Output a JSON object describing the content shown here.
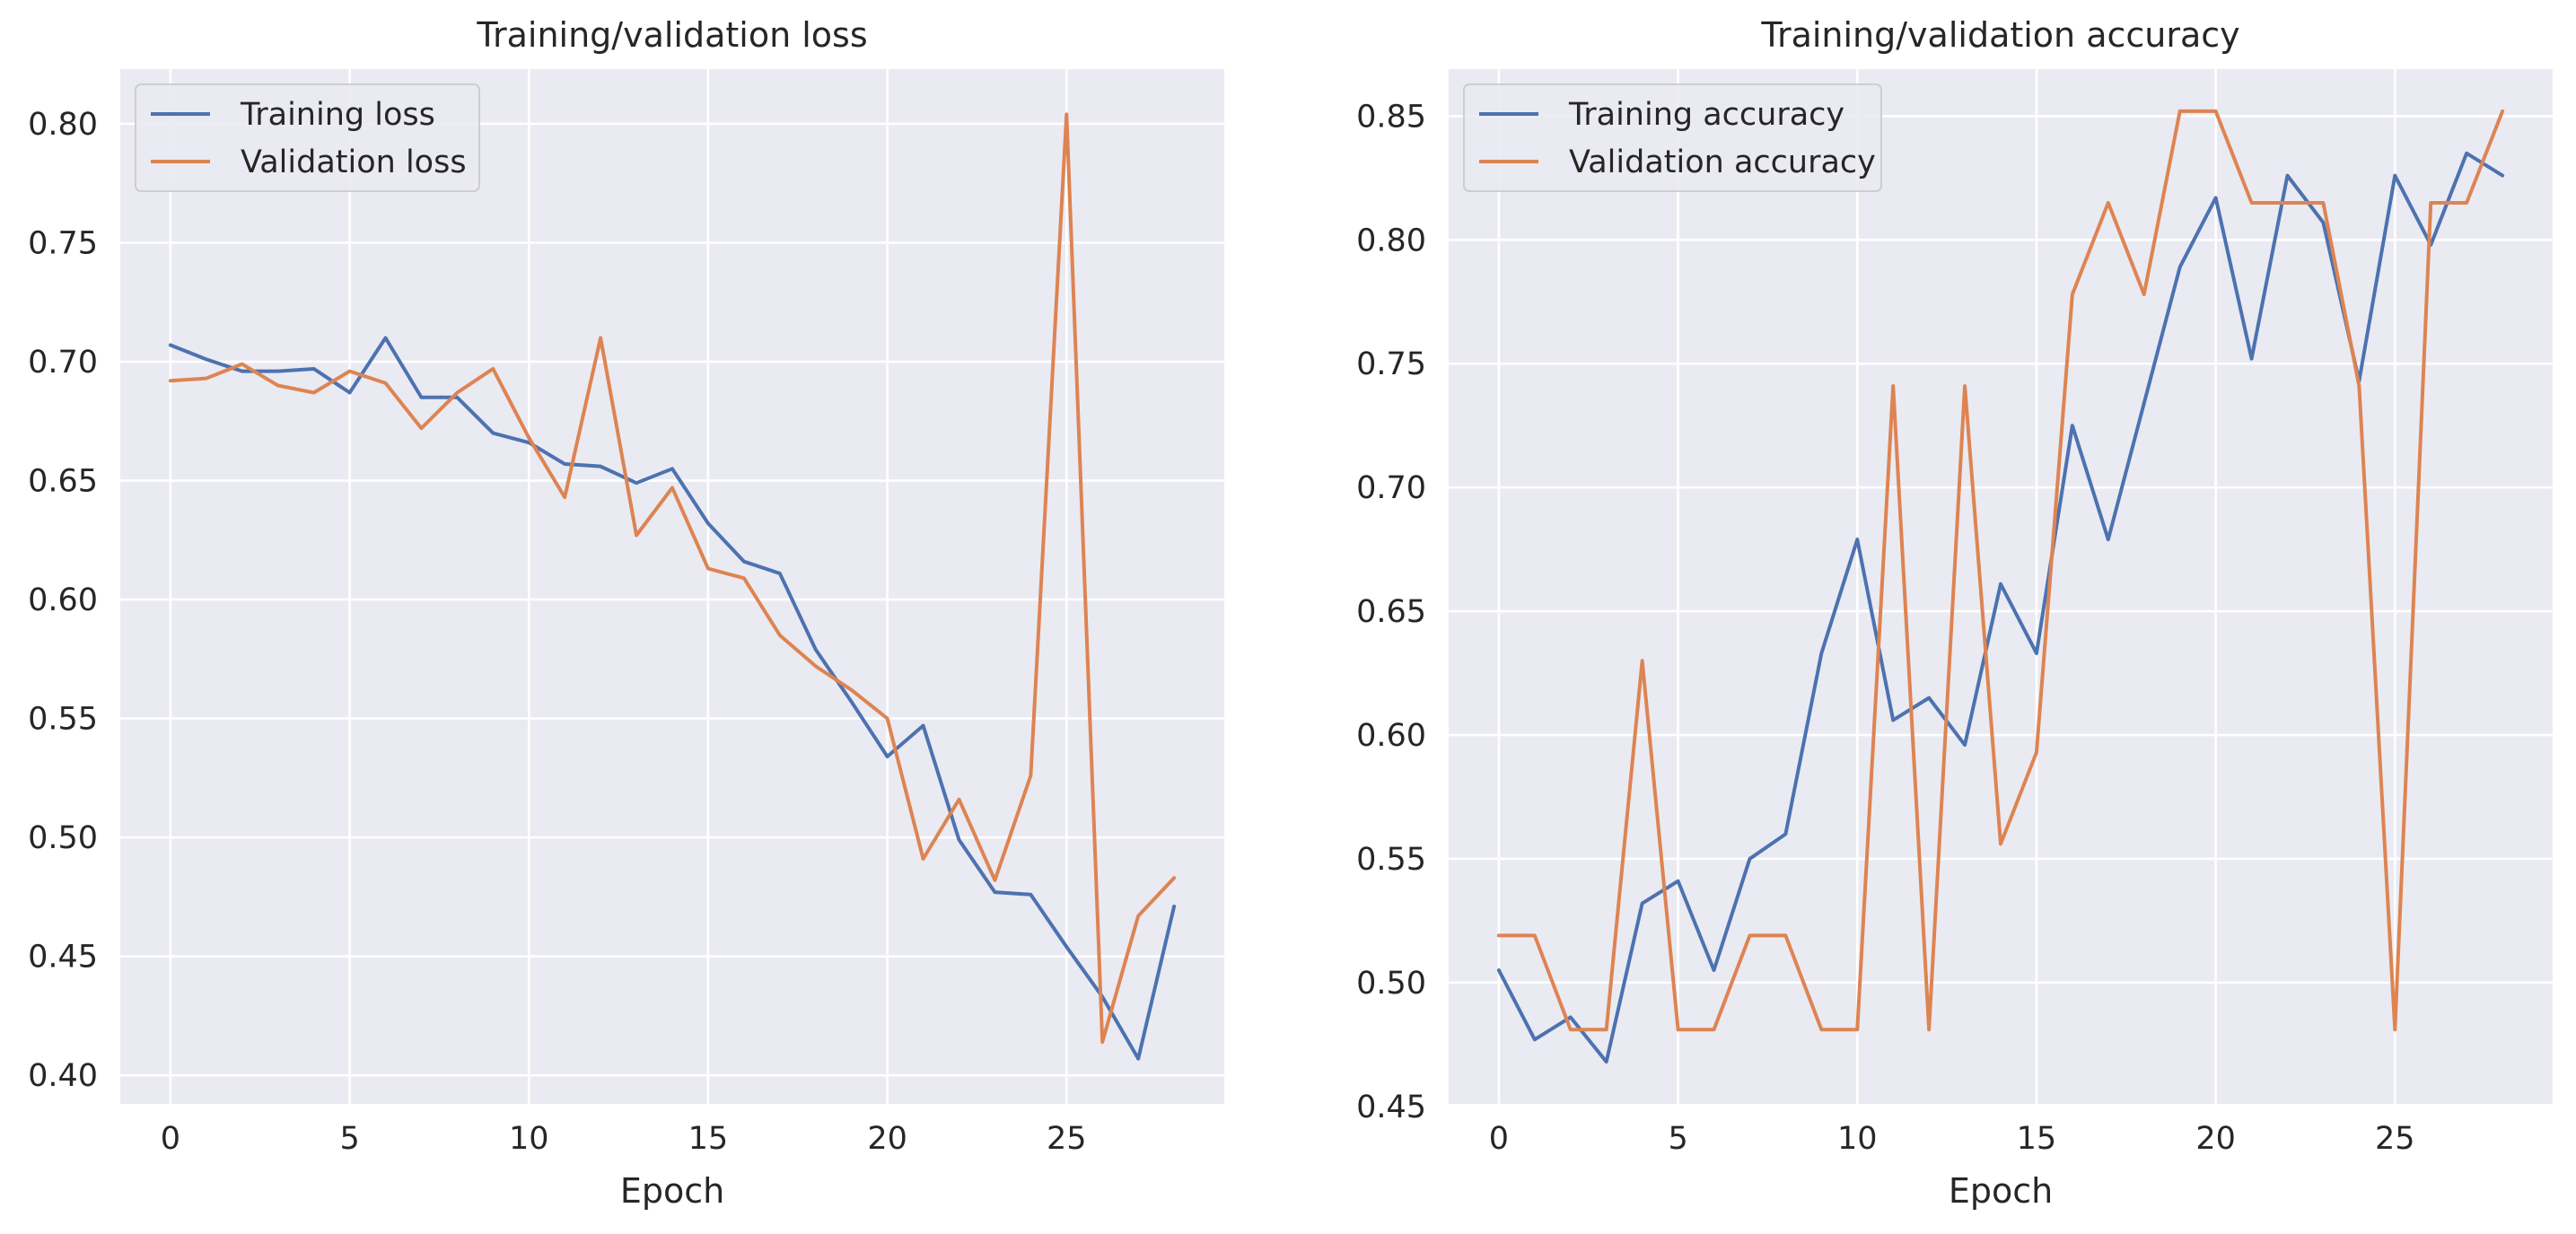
{
  "colors": {
    "training": "#4c72b0",
    "validation": "#dd8452",
    "plot_background": "#eaeaf2",
    "grid": "#ffffff"
  },
  "chart_data": [
    {
      "type": "line",
      "title": "Training/validation loss",
      "xlabel": "Epoch",
      "ylabel": "",
      "xlim": [
        -1.4,
        29.4
      ],
      "ylim": [
        0.388,
        0.823
      ],
      "xticks": [
        0,
        5,
        10,
        15,
        20,
        25
      ],
      "yticks": [
        0.4,
        0.45,
        0.5,
        0.55,
        0.6,
        0.65,
        0.7,
        0.75,
        0.8
      ],
      "grid": true,
      "legend_position": "top-left",
      "x": [
        0,
        1,
        2,
        3,
        4,
        5,
        6,
        7,
        8,
        9,
        10,
        11,
        12,
        13,
        14,
        15,
        16,
        17,
        18,
        19,
        20,
        21,
        22,
        23,
        24,
        25,
        26,
        27,
        28
      ],
      "series": [
        {
          "name": "Training loss",
          "color": "#4c72b0",
          "values": [
            0.707,
            0.701,
            0.696,
            0.696,
            0.697,
            0.687,
            0.71,
            0.685,
            0.685,
            0.67,
            0.666,
            0.657,
            0.656,
            0.649,
            0.655,
            0.632,
            0.616,
            0.611,
            0.579,
            0.557,
            0.534,
            0.547,
            0.499,
            0.477,
            0.476,
            0.454,
            0.433,
            0.407,
            0.471
          ]
        },
        {
          "name": "Validation loss",
          "color": "#dd8452",
          "values": [
            0.692,
            0.693,
            0.699,
            0.69,
            0.687,
            0.696,
            0.691,
            0.672,
            0.687,
            0.697,
            0.668,
            0.643,
            0.71,
            0.627,
            0.647,
            0.613,
            0.609,
            0.585,
            0.572,
            0.562,
            0.55,
            0.491,
            0.516,
            0.482,
            0.526,
            0.804,
            0.414,
            0.467,
            0.483
          ]
        }
      ]
    },
    {
      "type": "line",
      "title": "Training/validation accuracy",
      "xlabel": "Epoch",
      "ylabel": "",
      "xlim": [
        -1.4,
        29.4
      ],
      "ylim": [
        0.451,
        0.869
      ],
      "xticks": [
        0,
        5,
        10,
        15,
        20,
        25
      ],
      "yticks": [
        0.45,
        0.5,
        0.55,
        0.6,
        0.65,
        0.7,
        0.75,
        0.8,
        0.85
      ],
      "grid": true,
      "legend_position": "top-left",
      "x": [
        0,
        1,
        2,
        3,
        4,
        5,
        6,
        7,
        8,
        9,
        10,
        11,
        12,
        13,
        14,
        15,
        16,
        17,
        18,
        19,
        20,
        21,
        22,
        23,
        24,
        25,
        26,
        27,
        28
      ],
      "series": [
        {
          "name": "Training accuracy",
          "color": "#4c72b0",
          "values": [
            0.505,
            0.477,
            0.486,
            0.468,
            0.532,
            0.541,
            0.505,
            0.55,
            0.56,
            0.633,
            0.679,
            0.606,
            0.615,
            0.596,
            0.661,
            0.633,
            0.725,
            0.679,
            0.734,
            0.789,
            0.817,
            0.752,
            0.826,
            0.807,
            0.743,
            0.826,
            0.798,
            0.835,
            0.826
          ]
        },
        {
          "name": "Validation accuracy",
          "color": "#dd8452",
          "values": [
            0.519,
            0.519,
            0.481,
            0.481,
            0.63,
            0.481,
            0.481,
            0.519,
            0.519,
            0.481,
            0.481,
            0.741,
            0.481,
            0.741,
            0.556,
            0.593,
            0.778,
            0.815,
            0.778,
            0.852,
            0.852,
            0.815,
            0.815,
            0.815,
            0.741,
            0.481,
            0.815,
            0.815,
            0.852
          ]
        }
      ]
    }
  ]
}
